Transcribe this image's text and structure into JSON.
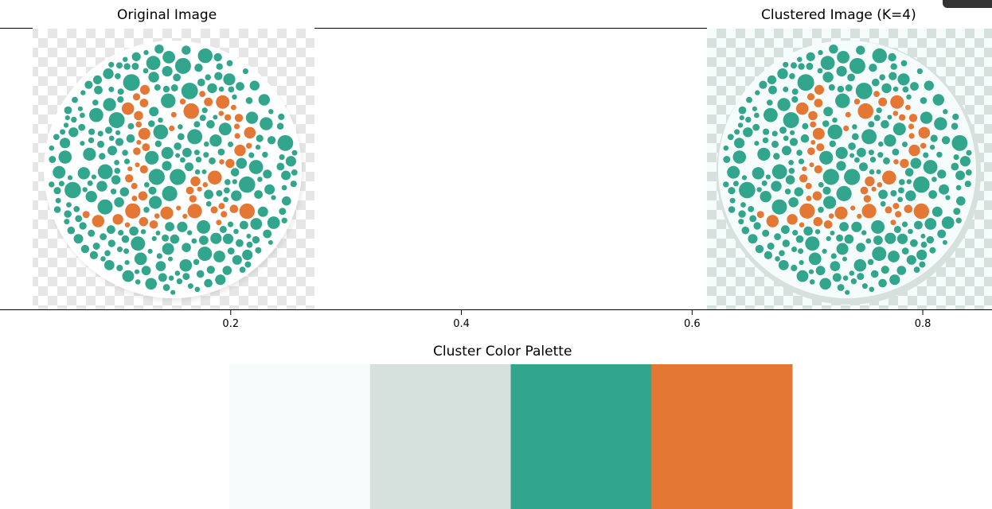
{
  "chart_data": [
    {
      "type": "image",
      "title": "Original Image",
      "image_description": "Ishihara color plate showing the number 12 in orange dots on a teal dot background"
    },
    {
      "type": "image",
      "title": "Clustered Image (K=4)",
      "image_description": "Same plate quantized to 4 cluster colors"
    },
    {
      "type": "axis",
      "x_ticks": [
        0.2,
        0.4,
        0.6,
        0.8
      ],
      "xlim": [
        0.0,
        0.86
      ]
    },
    {
      "type": "palette",
      "title": "Cluster Color Palette",
      "colors": [
        "#f6fbfb",
        "#d6e0dc",
        "#31a68c",
        "#e57735"
      ]
    }
  ],
  "colors": {
    "teal": "#31a68c",
    "orange": "#e57735",
    "checker_light": "#ffffff",
    "checker_dark": "#e6e6e6",
    "checker_clustered_light": "#f6fbfb",
    "checker_clustered_dark": "#d6e0dc"
  }
}
